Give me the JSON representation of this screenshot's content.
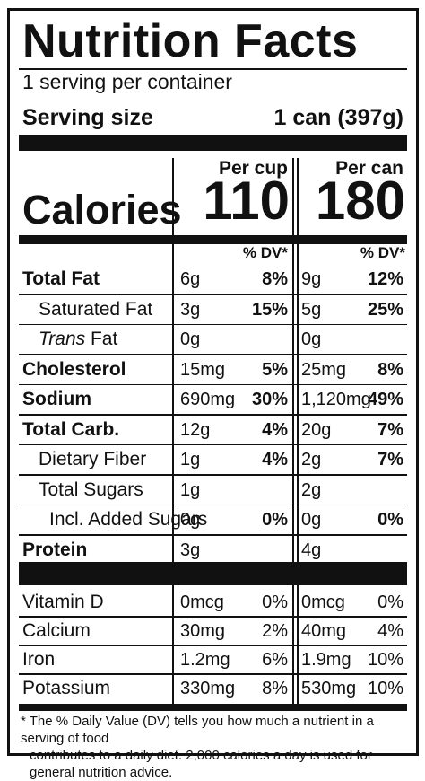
{
  "title": "Nutrition Facts",
  "servings_per_container": "1 serving per container",
  "serving_size_label": "Serving size",
  "serving_size_value": "1 can (397g)",
  "per_cup_label": "Per cup",
  "per_can_label": "Per can",
  "calories_label": "Calories",
  "calories_per_cup": "110",
  "calories_per_can": "180",
  "dv_header": "% DV*",
  "nutrients": [
    {
      "label": "Total Fat",
      "cup_amount": "6g",
      "cup_dv": "8%",
      "can_amount": "9g",
      "can_dv": "12%"
    },
    {
      "label": "Saturated Fat",
      "cup_amount": "3g",
      "cup_dv": "15%",
      "can_amount": "5g",
      "can_dv": "25%"
    },
    {
      "label_prefix": "Trans",
      "label_suffix": " Fat",
      "cup_amount": "0g",
      "cup_dv": "",
      "can_amount": "0g",
      "can_dv": ""
    },
    {
      "label": "Cholesterol",
      "cup_amount": "15mg",
      "cup_dv": "5%",
      "can_amount": "25mg",
      "can_dv": "8%"
    },
    {
      "label": "Sodium",
      "cup_amount": "690mg",
      "cup_dv": "30%",
      "can_amount": "1,120mg",
      "can_dv": "49%"
    },
    {
      "label": "Total Carb.",
      "cup_amount": "12g",
      "cup_dv": "4%",
      "can_amount": "20g",
      "can_dv": "7%"
    },
    {
      "label": "Dietary Fiber",
      "cup_amount": "1g",
      "cup_dv": "4%",
      "can_amount": "2g",
      "can_dv": "7%"
    },
    {
      "label": "Total Sugars",
      "cup_amount": "1g",
      "cup_dv": "",
      "can_amount": "2g",
      "can_dv": ""
    },
    {
      "label": "Incl. Added Sugars",
      "cup_amount": "0g",
      "cup_dv": "0%",
      "can_amount": "0g",
      "can_dv": "0%"
    },
    {
      "label": "Protein",
      "cup_amount": "3g",
      "cup_dv": "",
      "can_amount": "4g",
      "can_dv": ""
    }
  ],
  "vitamins": [
    {
      "label": "Vitamin D",
      "cup_amount": "0mcg",
      "cup_dv": "0%",
      "can_amount": "0mcg",
      "can_dv": "0%"
    },
    {
      "label": "Calcium",
      "cup_amount": "30mg",
      "cup_dv": "2%",
      "can_amount": "40mg",
      "can_dv": "4%"
    },
    {
      "label": "Iron",
      "cup_amount": "1.2mg",
      "cup_dv": "6%",
      "can_amount": "1.9mg",
      "can_dv": "10%"
    },
    {
      "label": "Potassium",
      "cup_amount": "330mg",
      "cup_dv": "8%",
      "can_amount": "530mg",
      "can_dv": "10%"
    }
  ],
  "footnote_line1": "* The % Daily Value (DV) tells you how much a nutrient in a serving of food",
  "footnote_line2": "contributes to a daily diet. 2,000 calories a day is used for general nutrition advice."
}
